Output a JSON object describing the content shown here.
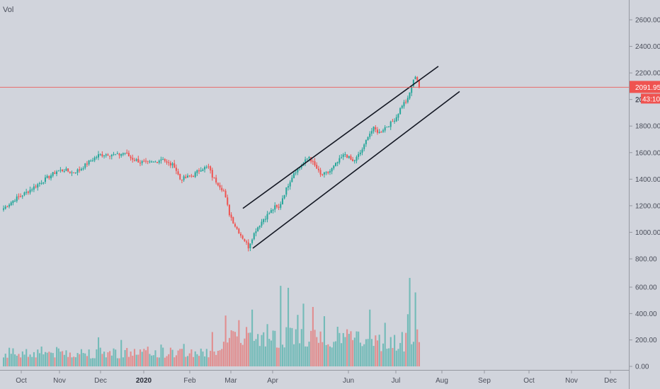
{
  "chart_data": {
    "type": "candlestick",
    "volume_label": "Vol",
    "price_axis": {
      "min": 800,
      "max": 2700,
      "ticks": [
        "2600.00",
        "2400.00",
        "2200.00",
        "2000.00",
        "1800.00",
        "1600.00",
        "1400.00",
        "1200.00",
        "1000.00",
        "800.00"
      ],
      "tick_values": [
        2600,
        2400,
        2200,
        2000,
        1800,
        1600,
        1400,
        1200,
        1000,
        800
      ]
    },
    "volume_axis": {
      "min": 0,
      "max": 760,
      "ticks": [
        "600.00",
        "400.00",
        "200.00",
        "0.00"
      ],
      "tick_values": [
        600,
        400,
        200,
        0
      ]
    },
    "time_axis": {
      "months": [
        {
          "label": "Oct",
          "bold": false
        },
        {
          "label": "Nov",
          "bold": false
        },
        {
          "label": "Dec",
          "bold": false
        },
        {
          "label": "2020",
          "bold": true
        },
        {
          "label": "Feb",
          "bold": false
        },
        {
          "label": "Mar",
          "bold": false
        },
        {
          "label": "Apr",
          "bold": false
        },
        {
          "label": "Jun",
          "bold": false
        },
        {
          "label": "Jul",
          "bold": false
        },
        {
          "label": "Aug",
          "bold": false
        },
        {
          "label": "Sep",
          "bold": false
        },
        {
          "label": "Oct",
          "bold": false
        },
        {
          "label": "Nov",
          "bold": false
        },
        {
          "label": "Dec",
          "bold": false
        }
      ]
    },
    "last_price": {
      "value": 2091.95,
      "label": "2091.95",
      "countdown": "43:10",
      "partial_tick": "20"
    },
    "channel": {
      "upper": [
        {
          "bar": 0,
          "price": 1180
        },
        {
          "bar": 1,
          "price": 2250
        }
      ],
      "lower": [
        {
          "bar": 0,
          "price": 880
        },
        {
          "bar": 1,
          "price": 2060
        }
      ]
    },
    "grid": false,
    "colors": {
      "up": "#26a69a",
      "down": "#ef5350",
      "channel": "#131722",
      "price_line": "#ef5350",
      "background": "#d1d4dc"
    },
    "price_path": [
      [
        0,
        1180
      ],
      [
        6,
        1250
      ],
      [
        12,
        1300
      ],
      [
        16,
        1340
      ],
      [
        20,
        1380
      ],
      [
        24,
        1420
      ],
      [
        28,
        1460
      ],
      [
        32,
        1470
      ],
      [
        36,
        1450
      ],
      [
        40,
        1470
      ],
      [
        45,
        1530
      ],
      [
        50,
        1580
      ],
      [
        55,
        1590
      ],
      [
        60,
        1580
      ],
      [
        64,
        1600
      ],
      [
        67,
        1560
      ],
      [
        72,
        1530
      ],
      [
        76,
        1520
      ],
      [
        80,
        1530
      ],
      [
        84,
        1560
      ],
      [
        86,
        1520
      ],
      [
        90,
        1500
      ],
      [
        93,
        1400
      ],
      [
        96,
        1410
      ],
      [
        100,
        1430
      ],
      [
        104,
        1480
      ],
      [
        108,
        1490
      ],
      [
        110,
        1420
      ],
      [
        114,
        1350
      ],
      [
        116,
        1310
      ],
      [
        119,
        1140
      ],
      [
        122,
        1050
      ],
      [
        125,
        980
      ],
      [
        127,
        940
      ],
      [
        129,
        890
      ],
      [
        131,
        960
      ],
      [
        133,
        1020
      ],
      [
        135,
        1060
      ],
      [
        137,
        1100
      ],
      [
        139,
        1130
      ],
      [
        141,
        1160
      ],
      [
        143,
        1190
      ],
      [
        145,
        1180
      ],
      [
        147,
        1260
      ],
      [
        150,
        1360
      ],
      [
        153,
        1450
      ],
      [
        156,
        1490
      ],
      [
        158,
        1520
      ],
      [
        161,
        1570
      ],
      [
        163,
        1520
      ],
      [
        165,
        1480
      ],
      [
        167,
        1430
      ],
      [
        170,
        1440
      ],
      [
        172,
        1460
      ],
      [
        175,
        1510
      ],
      [
        178,
        1560
      ],
      [
        180,
        1590
      ],
      [
        182,
        1560
      ],
      [
        184,
        1530
      ],
      [
        186,
        1560
      ],
      [
        188,
        1600
      ],
      [
        190,
        1650
      ],
      [
        192,
        1730
      ],
      [
        195,
        1780
      ],
      [
        198,
        1750
      ],
      [
        201,
        1790
      ],
      [
        204,
        1820
      ],
      [
        207,
        1870
      ],
      [
        210,
        1960
      ],
      [
        213,
        2000
      ],
      [
        215,
        2100
      ],
      [
        217,
        2180
      ],
      [
        218,
        2150
      ],
      [
        219,
        2091.95
      ]
    ],
    "volume_spikes": [
      [
        20,
        150
      ],
      [
        50,
        220
      ],
      [
        62,
        200
      ],
      [
        83,
        165
      ],
      [
        95,
        170
      ],
      [
        110,
        260
      ],
      [
        117,
        385
      ],
      [
        124,
        350
      ],
      [
        131,
        430
      ],
      [
        139,
        320
      ],
      [
        146,
        610
      ],
      [
        150,
        595
      ],
      [
        155,
        390
      ],
      [
        158,
        475
      ],
      [
        163,
        450
      ],
      [
        169,
        380
      ],
      [
        176,
        300
      ],
      [
        186,
        265
      ],
      [
        193,
        430
      ],
      [
        201,
        330
      ],
      [
        210,
        260
      ],
      [
        213,
        395
      ],
      [
        214,
        670
      ],
      [
        217,
        560
      ],
      [
        218,
        280
      ]
    ]
  }
}
